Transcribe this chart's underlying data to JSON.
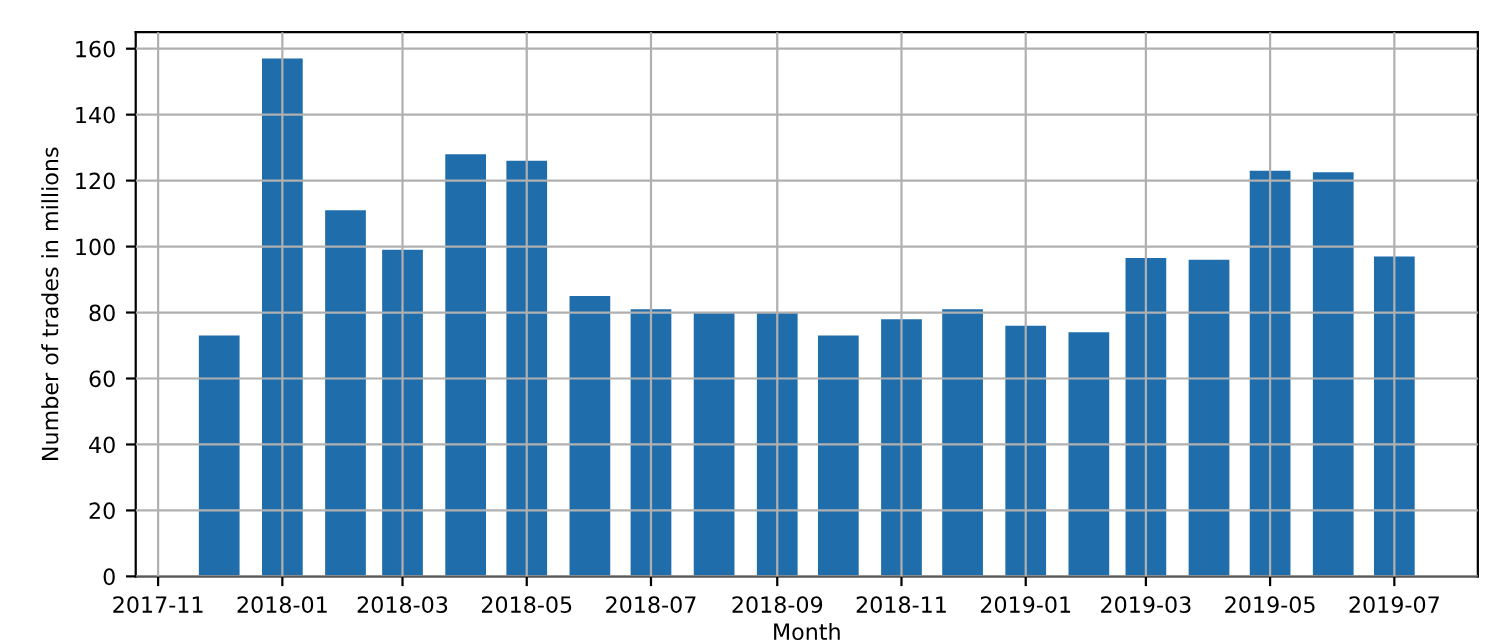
{
  "chart_data": {
    "type": "bar",
    "xlabel": "Month",
    "ylabel": "Number of trades in millions",
    "x": [
      "2017-12-01",
      "2018-01-01",
      "2018-02-01",
      "2018-03-01",
      "2018-04-01",
      "2018-05-01",
      "2018-06-01",
      "2018-07-01",
      "2018-08-01",
      "2018-09-01",
      "2018-10-01",
      "2018-11-01",
      "2018-12-01",
      "2019-01-01",
      "2019-02-01",
      "2019-03-01",
      "2019-04-01",
      "2019-05-01",
      "2019-06-01",
      "2019-07-01"
    ],
    "values": [
      73,
      157,
      111,
      99,
      128,
      126,
      85,
      81,
      80,
      80,
      73,
      78,
      81,
      76,
      74,
      96.5,
      96,
      123,
      122.5,
      97
    ],
    "color": "#1f6dab",
    "xlim": [
      "2017-10-21",
      "2019-08-11"
    ],
    "xticks": [
      {
        "value": "2017-11-01",
        "label": "2017-11"
      },
      {
        "value": "2018-01-01",
        "label": "2018-01"
      },
      {
        "value": "2018-03-01",
        "label": "2018-03"
      },
      {
        "value": "2018-05-01",
        "label": "2018-05"
      },
      {
        "value": "2018-07-01",
        "label": "2018-07"
      },
      {
        "value": "2018-09-01",
        "label": "2018-09"
      },
      {
        "value": "2018-11-01",
        "label": "2018-11"
      },
      {
        "value": "2019-01-01",
        "label": "2019-01"
      },
      {
        "value": "2019-03-01",
        "label": "2019-03"
      },
      {
        "value": "2019-05-01",
        "label": "2019-05"
      },
      {
        "value": "2019-07-01",
        "label": "2019-07"
      }
    ],
    "ylim": [
      0,
      165
    ],
    "yticks": [
      0,
      20,
      40,
      60,
      80,
      100,
      120,
      140,
      160
    ],
    "grid": true
  }
}
